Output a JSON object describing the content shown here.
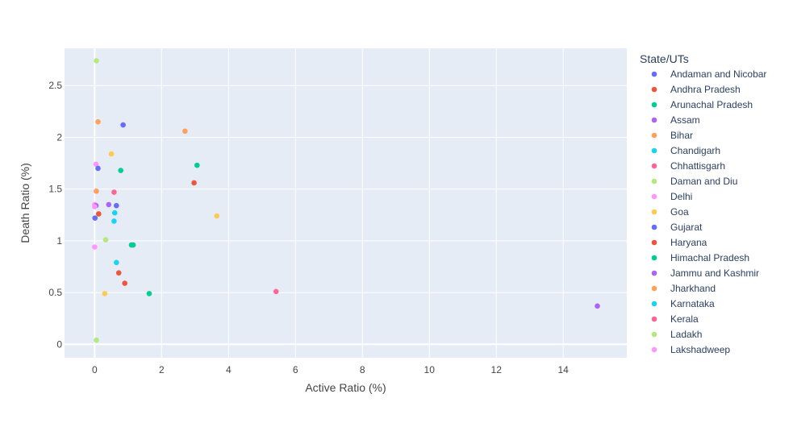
{
  "chart_data": {
    "type": "scatter",
    "xlabel": "Active Ratio (%)",
    "ylabel": "Death Ratio (%)",
    "xlim": [
      -0.9,
      15.9
    ],
    "ylim": [
      -0.13,
      2.86
    ],
    "xticks": [
      0,
      2,
      4,
      6,
      8,
      10,
      12,
      14
    ],
    "yticks": [
      0,
      0.5,
      1,
      1.5,
      2,
      2.5
    ],
    "grid": true,
    "legend": {
      "title": "State/UTs",
      "placement": "right"
    },
    "series": [
      {
        "name": "Andaman and Nicobar",
        "color": "#636efa",
        "points": [
          [
            0.85,
            2.12
          ]
        ]
      },
      {
        "name": "Andhra Pradesh",
        "color": "#EF553B",
        "points": [
          [
            0.12,
            1.26
          ]
        ]
      },
      {
        "name": "Arunachal Pradesh",
        "color": "#00cc96",
        "points": [
          [
            1.15,
            0.96
          ]
        ]
      },
      {
        "name": "Assam",
        "color": "#ab63fa",
        "points": [
          [
            0.42,
            1.35
          ]
        ]
      },
      {
        "name": "Bihar",
        "color": "#FFA15A",
        "points": [
          [
            0.1,
            2.15
          ]
        ]
      },
      {
        "name": "Chandigarh",
        "color": "#19d3f3",
        "points": [
          [
            0.6,
            1.27
          ]
        ]
      },
      {
        "name": "Chhattisgarh",
        "color": "#FF6692",
        "points": [
          [
            0.58,
            1.47
          ]
        ]
      },
      {
        "name": "Daman and Diu",
        "color": "#B6E880",
        "points": [
          [
            0.05,
            2.74
          ]
        ]
      },
      {
        "name": "Delhi",
        "color": "#FF97FF",
        "points": [
          [
            0.04,
            1.74
          ]
        ]
      },
      {
        "name": "Goa",
        "color": "#FECB52",
        "points": [
          [
            0.5,
            1.84
          ]
        ]
      },
      {
        "name": "Gujarat",
        "color": "#636efa",
        "points": [
          [
            0.1,
            1.7
          ],
          [
            0.65,
            1.34
          ]
        ]
      },
      {
        "name": "Haryana",
        "color": "#EF553B",
        "points": [
          [
            0.9,
            0.59
          ],
          [
            2.97,
            1.56
          ]
        ]
      },
      {
        "name": "Himachal Pradesh",
        "color": "#00cc96",
        "points": [
          [
            0.78,
            1.68
          ],
          [
            1.63,
            0.49
          ],
          [
            3.06,
            1.73
          ]
        ]
      },
      {
        "name": "Jammu and Kashmir",
        "color": "#ab63fa",
        "points": [
          [
            15.02,
            0.37
          ]
        ]
      },
      {
        "name": "Jharkhand",
        "color": "#FFA15A",
        "points": [
          [
            0.05,
            1.48
          ],
          [
            2.7,
            2.06
          ]
        ]
      },
      {
        "name": "Karnataka",
        "color": "#19d3f3",
        "points": [
          [
            0.65,
            0.79
          ],
          [
            0.58,
            1.19
          ]
        ]
      },
      {
        "name": "Kerala",
        "color": "#FF6692",
        "points": [
          [
            5.42,
            0.51
          ]
        ]
      },
      {
        "name": "Ladakh",
        "color": "#B6E880",
        "points": [
          [
            0.05,
            0.04
          ],
          [
            0.33,
            1.01
          ]
        ]
      },
      {
        "name": "Lakshadweep",
        "color": "#FF97FF",
        "points": [
          [
            0.0,
            0.94
          ],
          [
            0.0,
            1.35
          ]
        ]
      },
      {
        "name": "",
        "color": "#FECB52",
        "points": [
          [
            3.65,
            1.24
          ],
          [
            0.3,
            0.49
          ]
        ]
      },
      {
        "name": "",
        "color": "#636efa",
        "points": [
          [
            0.01,
            1.22
          ]
        ]
      },
      {
        "name": "",
        "color": "#EF553B",
        "points": [
          [
            0.72,
            0.69
          ]
        ]
      },
      {
        "name": "",
        "color": "#00cc96",
        "points": [
          [
            1.1,
            0.96
          ]
        ]
      },
      {
        "name": "",
        "color": "#ab63fa",
        "points": [
          [
            0.04,
            1.34
          ]
        ]
      },
      {
        "name": "",
        "color": "#FF97FF",
        "points": [
          [
            0.0,
            1.33
          ]
        ]
      }
    ]
  }
}
